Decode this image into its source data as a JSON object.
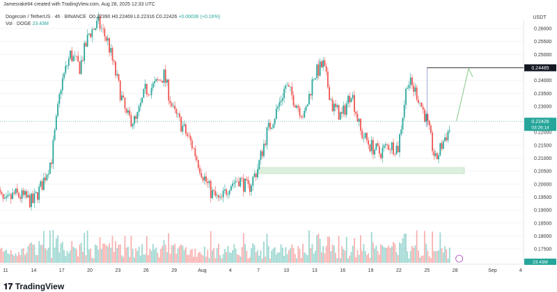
{
  "header": {
    "credit": "Jamesrake84 created with TradingView.com, Aug 28, 2025 12:33 UTC",
    "symbol": "Dogecoin / TetherUS · 4h · BINANCE",
    "o": "O0.22390",
    "h": "H0.22469",
    "l": "L0.22316",
    "c": "C0.22426",
    "change": "+0.00036 (+0.16%)",
    "vol_label": "Vol · DOGE",
    "vol_value": "23.43M"
  },
  "logo": "TradingView",
  "colors": {
    "up": "#26a69a",
    "down": "#ef5350",
    "zone": "#c8e6c9",
    "arrow": "#81c784"
  },
  "chart_data": {
    "type": "candlestick",
    "timeframe": "4h",
    "currency_label": "USDT",
    "ylim": [
      0.1725,
      0.2625
    ],
    "y_ticks": [
      "0.26000",
      "0.25500",
      "0.25000",
      "0.24000",
      "0.23500",
      "0.23000",
      "0.22000",
      "0.21500",
      "0.21000",
      "0.20500",
      "0.20000",
      "0.19500",
      "0.19000",
      "0.18500",
      "0.18000",
      "0.17500"
    ],
    "x_ticks": [
      {
        "date": "2025-07-11",
        "label": "11"
      },
      {
        "date": "2025-07-14",
        "label": "14"
      },
      {
        "date": "2025-07-17",
        "label": "17"
      },
      {
        "date": "2025-07-20",
        "label": "20"
      },
      {
        "date": "2025-07-23",
        "label": "23"
      },
      {
        "date": "2025-07-26",
        "label": "26"
      },
      {
        "date": "2025-07-29",
        "label": "29"
      },
      {
        "date": "2025-08-01",
        "label": "Aug"
      },
      {
        "date": "2025-08-04",
        "label": "4"
      },
      {
        "date": "2025-08-07",
        "label": "7"
      },
      {
        "date": "2025-08-10",
        "label": "10"
      },
      {
        "date": "2025-08-13",
        "label": "13"
      },
      {
        "date": "2025-08-16",
        "label": "16"
      },
      {
        "date": "2025-08-19",
        "label": "19"
      },
      {
        "date": "2025-08-22",
        "label": "22"
      },
      {
        "date": "2025-08-25",
        "label": "25"
      },
      {
        "date": "2025-08-28",
        "label": "28"
      },
      {
        "date": "2025-09-01",
        "label": "Sep"
      },
      {
        "date": "2025-09-04",
        "label": "4"
      }
    ],
    "daily_close_approx": {
      "start": "2025-07-10",
      "values": [
        0.199,
        0.192,
        0.196,
        0.195,
        0.193,
        0.2,
        0.21,
        0.238,
        0.25,
        0.245,
        0.258,
        0.262,
        0.255,
        0.24,
        0.226,
        0.224,
        0.236,
        0.238,
        0.242,
        0.228,
        0.222,
        0.215,
        0.205,
        0.197,
        0.193,
        0.2,
        0.202,
        0.198,
        0.206,
        0.22,
        0.228,
        0.238,
        0.232,
        0.226,
        0.242,
        0.246,
        0.23,
        0.226,
        0.236,
        0.22,
        0.215,
        0.212,
        0.215,
        0.214,
        0.24,
        0.235,
        0.225,
        0.209,
        0.218,
        0.2243
      ]
    },
    "last_price": "0.22426",
    "countdown": "03:26:14",
    "level_line": {
      "price": "0.24485",
      "from": "2025-08-25"
    },
    "support_zone": {
      "from": "2025-08-07",
      "to": "2025-08-29",
      "low": 0.204,
      "high": 0.2064
    },
    "projection_arrow": {
      "from_date": "2025-08-28",
      "from_price": 0.2243,
      "to_date": "2025-08-29",
      "to_price": 0.2445
    },
    "volume_last": "23.43M"
  }
}
